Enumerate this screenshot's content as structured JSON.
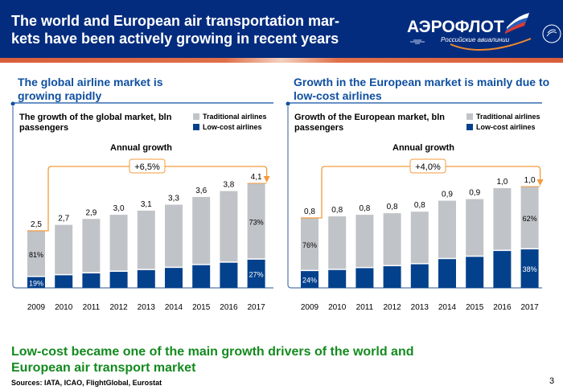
{
  "header": {
    "title": "The world and European air transportation mar-kets have been actively growing in recent years",
    "logo_text": "АЭРОФЛОТ",
    "logo_subtitle": "Российские авиалинии",
    "alliance": "SKYTEAM"
  },
  "colors": {
    "header_bg": "#042C7E",
    "traditional": "#C0C4C8",
    "lowcost": "#04418C",
    "accent_orange": "#F59B3D",
    "panel_title": "#0F4FA0",
    "footer_green": "#138A1E"
  },
  "footer": {
    "main": "Low-cost became one of the main growth drivers of the world and European air transport market",
    "sources": "Sources: IATA, ICAO, FlightGlobal, Eurostat",
    "page_number": "3"
  },
  "chart_data": [
    {
      "type": "bar",
      "panel_title": "The global airline market is growing rapidly",
      "title": "The growth of the global market, bln passengers",
      "legend": [
        "Traditional airlines",
        "Low-cost airlines"
      ],
      "annual_growth_label": "Annual growth",
      "annual_growth_value": "+6,5%",
      "categories": [
        "2009",
        "2010",
        "2011",
        "2012",
        "2013",
        "2014",
        "2015",
        "2016",
        "2017"
      ],
      "totals": [
        2.5,
        2.7,
        2.9,
        3.0,
        3.1,
        3.3,
        3.6,
        3.8,
        4.1
      ],
      "total_labels": [
        "2,5",
        "2,7",
        "2,9",
        "3,0",
        "3,1",
        "3,3",
        "3,6",
        "3,8",
        "4,1"
      ],
      "lowcost_share": [
        19,
        20,
        21,
        22,
        23,
        24,
        25,
        26,
        27
      ],
      "share_labels": {
        "first": {
          "traditional": "81%",
          "lowcost": "19%"
        },
        "last": {
          "traditional": "73%",
          "lowcost": "27%"
        }
      },
      "series": [
        {
          "name": "Traditional airlines",
          "share": [
            81,
            80,
            79,
            78,
            77,
            76,
            75,
            74,
            73
          ]
        },
        {
          "name": "Low-cost airlines",
          "share": [
            19,
            20,
            21,
            22,
            23,
            24,
            25,
            26,
            27
          ]
        }
      ],
      "legend_position": "top-right"
    },
    {
      "type": "bar",
      "panel_title": "Growth in the European market is mainly due to low-cost airlines",
      "title": "Growth of the European market, bln passengers",
      "legend": [
        "Traditional airlines",
        "Low-cost airlines"
      ],
      "annual_growth_label": "Annual growth",
      "annual_growth_value": "+4,0%",
      "categories": [
        "2009",
        "2010",
        "2011",
        "2012",
        "2013",
        "2014",
        "2015",
        "2016",
        "2017"
      ],
      "totals": [
        0.8,
        0.8,
        0.8,
        0.8,
        0.8,
        0.9,
        0.9,
        1.0,
        1.0
      ],
      "total_labels": [
        "0,8",
        "0,8",
        "0,8",
        "0,8",
        "0,8",
        "0,9",
        "0,9",
        "1,0",
        "1,0"
      ],
      "lowcost_share": [
        24,
        25,
        27,
        29,
        31,
        33,
        35,
        37,
        38
      ],
      "share_labels": {
        "first": {
          "traditional": "76%",
          "lowcost": "24%"
        },
        "last": {
          "traditional": "62%",
          "lowcost": "38%"
        }
      },
      "series": [
        {
          "name": "Traditional airlines",
          "share": [
            76,
            75,
            73,
            71,
            69,
            67,
            65,
            63,
            62
          ]
        },
        {
          "name": "Low-cost airlines",
          "share": [
            24,
            25,
            27,
            29,
            31,
            33,
            35,
            37,
            38
          ]
        }
      ],
      "legend_position": "top-right"
    }
  ]
}
